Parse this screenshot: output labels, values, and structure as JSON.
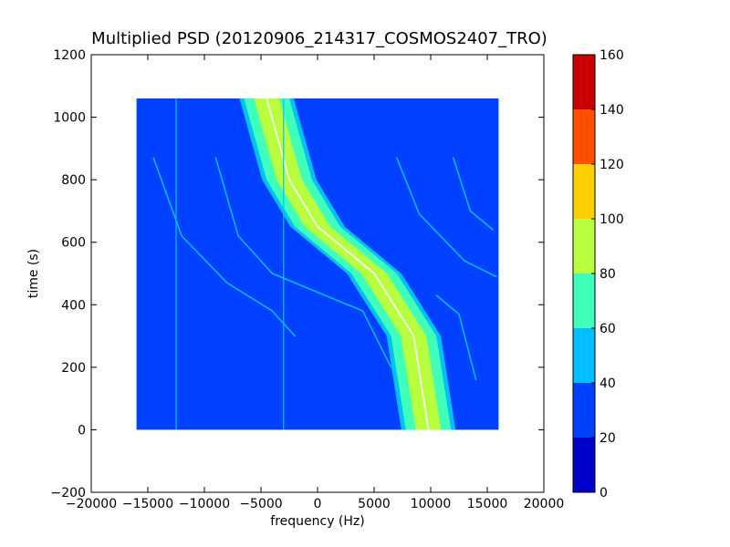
{
  "chart_data": {
    "type": "heatmap",
    "title": "Multiplied PSD (20120906_214317_COSMOS2407_TRO)",
    "xlabel": "frequency (Hz)",
    "ylabel": "time (s)",
    "xlim": [
      -20000,
      20000
    ],
    "ylim": [
      -200,
      1200
    ],
    "xticks": [
      -20000,
      -15000,
      -10000,
      -5000,
      0,
      5000,
      10000,
      15000,
      20000
    ],
    "xtick_labels": [
      "−20000",
      "−15000",
      "−10000",
      "−5000",
      "0",
      "5000",
      "10000",
      "15000",
      "20000"
    ],
    "yticks": [
      -200,
      0,
      200,
      400,
      600,
      800,
      1000,
      1200
    ],
    "ytick_labels": [
      "−200",
      "0",
      "200",
      "400",
      "600",
      "800",
      "1000",
      "1200"
    ],
    "data_extent": {
      "x": [
        -16000,
        16000
      ],
      "y": [
        0,
        1060
      ]
    },
    "colorbar": {
      "min": 0,
      "max": 160,
      "ticks": [
        0,
        20,
        40,
        60,
        80,
        100,
        120,
        140,
        160
      ],
      "tick_labels": [
        "0",
        "20",
        "40",
        "60",
        "80",
        "100",
        "120",
        "140",
        "160"
      ],
      "colors": [
        "#0000c8",
        "#0040ff",
        "#00c0ff",
        "#40ffb8",
        "#b8ff40",
        "#ffd000",
        "#ff5000",
        "#c80000"
      ]
    },
    "background_level": 30,
    "main_trace": {
      "description_points": [
        [
          -4500,
          1060
        ],
        [
          -2500,
          800
        ],
        [
          0,
          650
        ],
        [
          5000,
          500
        ],
        [
          8500,
          300
        ],
        [
          9800,
          0
        ]
      ],
      "band_halfwidth_hz": [
        1600,
        2400
      ],
      "peak_level": 90
    },
    "faint_traces": [
      {
        "points": [
          [
            -14500,
            870
          ],
          [
            -12000,
            620
          ],
          [
            -8000,
            470
          ],
          [
            -4000,
            380
          ],
          [
            -2000,
            300
          ]
        ]
      },
      {
        "points": [
          [
            -9000,
            870
          ],
          [
            -7000,
            620
          ],
          [
            -4000,
            500
          ],
          [
            0,
            440
          ],
          [
            4000,
            380
          ],
          [
            6500,
            200
          ]
        ]
      },
      {
        "points": [
          [
            7000,
            870
          ],
          [
            9000,
            690
          ],
          [
            13000,
            540
          ],
          [
            15800,
            490
          ]
        ]
      },
      {
        "points": [
          [
            12000,
            870
          ],
          [
            13500,
            700
          ],
          [
            15500,
            640
          ]
        ]
      },
      {
        "points": [
          [
            10500,
            430
          ],
          [
            12500,
            370
          ],
          [
            14000,
            160
          ]
        ]
      }
    ],
    "vertical_lines": [
      {
        "x": -12500,
        "y": [
          0,
          1060
        ]
      },
      {
        "x": -3000,
        "y": [
          0,
          1060
        ]
      }
    ]
  }
}
